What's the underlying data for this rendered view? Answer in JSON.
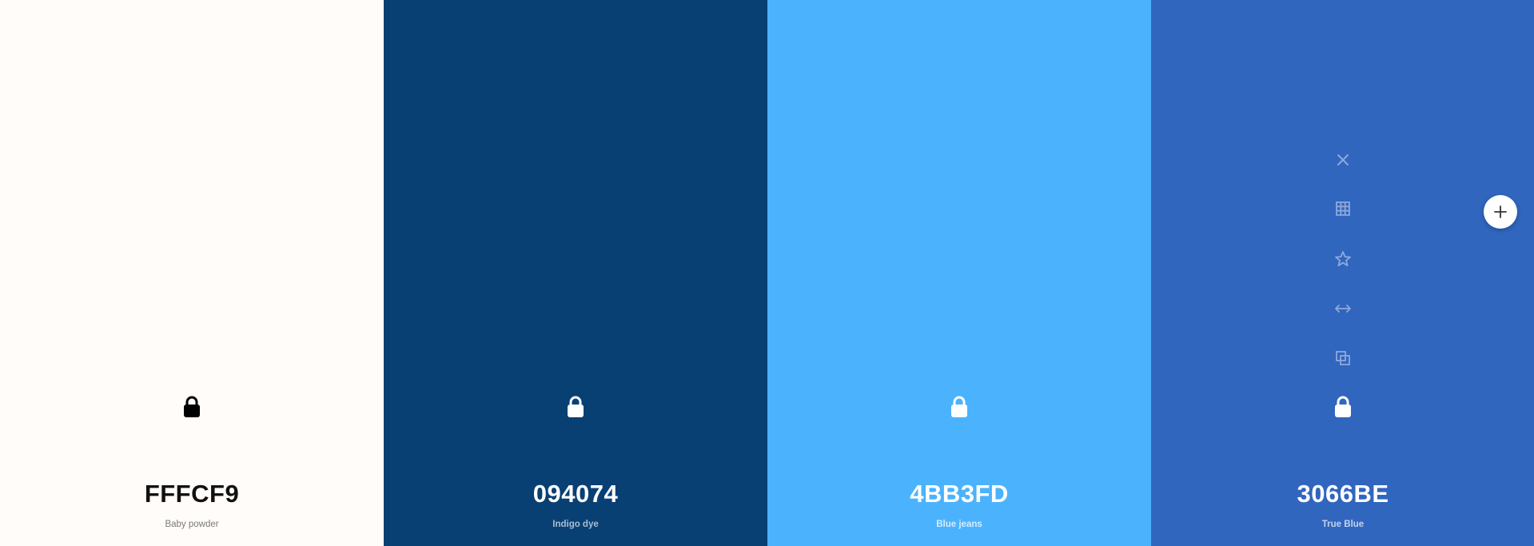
{
  "colors": [
    {
      "hex": "FFFCF9",
      "name": "Baby powder",
      "background": "#FFFCF9",
      "text_color": "#111111",
      "name_color": "#7a7a7a",
      "lock_color": "#000000"
    },
    {
      "hex": "094074",
      "name": "Indigo dye",
      "background": "#094074",
      "text_color": "#ffffff",
      "name_color": "#a9bed3",
      "lock_color": "#ffffff"
    },
    {
      "hex": "4BB3FD",
      "name": "Blue jeans",
      "background": "#4BB3FD",
      "text_color": "#ffffff",
      "name_color": "#d6ecff",
      "lock_color": "#ffffff"
    },
    {
      "hex": "3066BE",
      "name": "True Blue",
      "background": "#3066BE",
      "text_color": "#ffffff",
      "name_color": "#c4d3ee",
      "lock_color": "#ffffff"
    }
  ],
  "hover_tools": [
    "close-icon",
    "grid-icon",
    "star-icon",
    "drag-horizontal-icon",
    "copy-icon",
    "lock-icon"
  ],
  "tool_icon_color": "#8ea8dc",
  "add_button_icon": "plus-icon"
}
